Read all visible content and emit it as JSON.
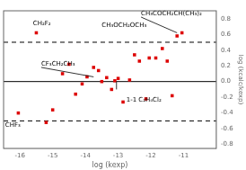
{
  "chart_data": {
    "type": "scatter",
    "xlabel": "log (kexp)",
    "ylabel": "log (kcalc/kexp)",
    "color": "#dd0000",
    "marker": "square",
    "x": [
      -16.05,
      -15.5,
      -15.2,
      -15.0,
      -14.7,
      -14.5,
      -14.3,
      -14.1,
      -13.95,
      -13.75,
      -13.6,
      -13.5,
      -13.35,
      -13.2,
      -13.1,
      -13.0,
      -12.85,
      -12.65,
      -12.5,
      -12.35,
      -12.15,
      -12.05,
      -11.85,
      -11.65,
      -11.5,
      -11.35,
      -11.2,
      -11.05
    ],
    "values": [
      -0.4,
      0.62,
      -0.52,
      -0.36,
      0.1,
      0.22,
      -0.16,
      -0.03,
      0.06,
      0.18,
      0.14,
      0.0,
      0.05,
      -0.1,
      0.01,
      0.04,
      -0.26,
      0.02,
      0.34,
      0.26,
      -0.22,
      0.3,
      0.3,
      0.42,
      0.26,
      -0.18,
      0.58,
      0.62
    ],
    "xlim": [
      -16.5,
      -10.0
    ],
    "ylim": [
      -0.85,
      0.9
    ],
    "xticks": [
      -16,
      -15,
      -14,
      -13,
      -12,
      -11
    ],
    "yticks": [
      -0.8,
      -0.6,
      -0.4,
      -0.2,
      {
        "value": 0,
        "label": "0.0"
      },
      0.2,
      0.4,
      0.6,
      0.8
    ],
    "grid": false,
    "hlines": [
      {
        "y": 0.0,
        "line_style": "solid"
      },
      {
        "y": 0.5,
        "line_style": "dashed"
      },
      {
        "y": -0.5,
        "line_style": "dashed"
      }
    ],
    "annotations": [
      {
        "text": "CH₂F₂",
        "x": -15.6,
        "y": 0.7
      },
      {
        "text": "CH₃OCH₂OCH₃",
        "x": -13.5,
        "y": 0.68
      },
      {
        "text": "CH₃COCH₂CH(CH₃)₂",
        "x": -12.3,
        "y": 0.82,
        "leader": [
          [
            -11.2,
            0.62
          ],
          [
            -12.3,
            0.82
          ]
        ]
      },
      {
        "text": "CF₃CH₂CH₃",
        "x": -15.35,
        "y": 0.18,
        "leader": [
          [
            -13.75,
            0.06
          ],
          [
            -15.35,
            0.18
          ]
        ]
      },
      {
        "text": "1-1 C₂H₄Cl₂",
        "x": -12.75,
        "y": -0.2,
        "leader": [
          [
            -13.05,
            0.0
          ],
          [
            -13.05,
            -0.1
          ]
        ]
      },
      {
        "text": "CHF₃",
        "x": -16.45,
        "y": -0.52
      }
    ]
  }
}
